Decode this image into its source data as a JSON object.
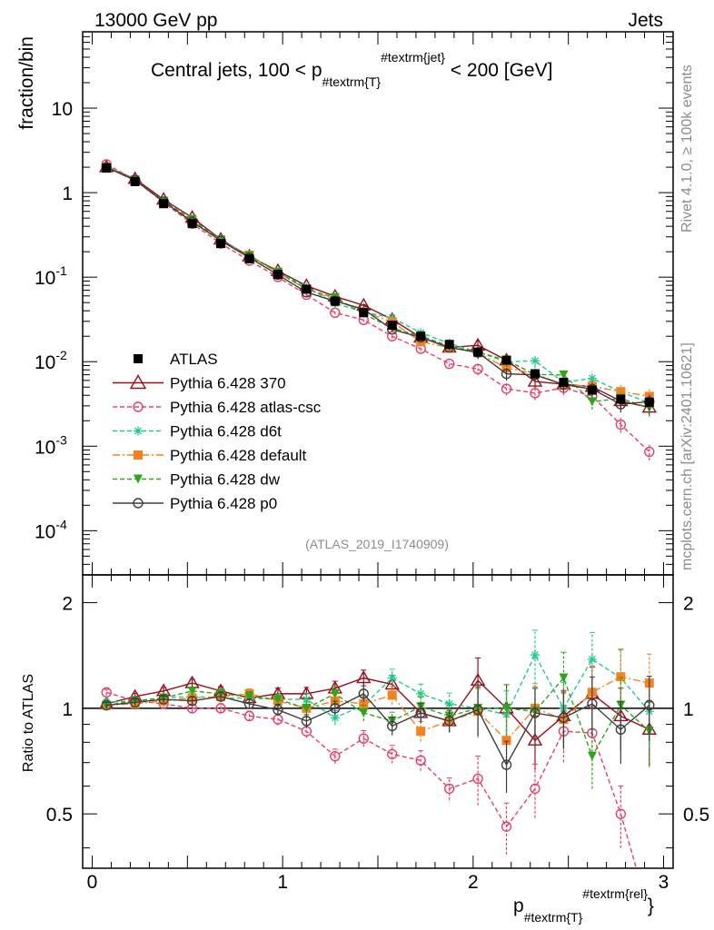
{
  "header": {
    "left": "13000 GeV pp",
    "right": "Jets",
    "side_rivet": "Rivet 4.1.0, ≥ 100k events",
    "side_mcplots": "mcplots.cern.ch [arXiv:2401.10621]",
    "analysis_id": "(ATLAS_2019_I1740909)"
  },
  "chart_data": {
    "type": "line",
    "title": "Central jets, 100 < p_#textrm{T}^#textrm{jet} < 200 [GeV]",
    "title_parts": {
      "pre": "Central jets, 100 < p",
      "sub": "#textrm{T}",
      "sup": "#textrm{jet}",
      "post": " < 200 [GeV]"
    },
    "ylabel": "fraction/bin",
    "ratio_ylabel": "Ratio to ATLAS",
    "xlabel_parts": {
      "base": "p",
      "sub": "#textrm{T}",
      "sup": "#textrm{rel}"
    },
    "x_ticklabels": [
      "0",
      "1",
      "2",
      "3"
    ],
    "y_ticklabels": [
      "10^-4",
      "10^-3",
      "10^-2",
      "10^-1",
      "1",
      "10"
    ],
    "ratio_ticklabels": [
      "0.5",
      "1",
      "2"
    ],
    "xlim": [
      -0.05,
      3.05
    ],
    "ylim": [
      3e-05,
      80
    ],
    "ratio_ylim": [
      0.35,
      2.4
    ],
    "x": [
      0.075,
      0.225,
      0.375,
      0.525,
      0.675,
      0.825,
      0.975,
      1.125,
      1.275,
      1.425,
      1.575,
      1.725,
      1.875,
      2.025,
      2.175,
      2.325,
      2.475,
      2.625,
      2.775,
      2.925
    ],
    "data": {
      "name": "ATLAS",
      "values": [
        1.95,
        1.35,
        0.74,
        0.43,
        0.25,
        0.165,
        0.108,
        0.072,
        0.052,
        0.038,
        0.027,
        0.02,
        0.016,
        0.013,
        0.0104,
        0.0072,
        0.0057,
        0.0046,
        0.0036,
        0.0033
      ]
    },
    "series": [
      {
        "name": "Pythia 6.428 370",
        "color": "#9b0c1c",
        "marker": "triangle-open",
        "dash": "solid",
        "ratio": [
          1.03,
          1.08,
          1.12,
          1.18,
          1.12,
          1.07,
          1.1,
          1.1,
          1.14,
          1.22,
          1.17,
          0.97,
          0.92,
          1.2,
          1.0,
          0.81,
          0.95,
          1.1,
          0.95,
          0.87
        ]
      },
      {
        "name": "Pythia 6.428 atlas-csc",
        "color": "#ee3d64",
        "marker": "circle-open",
        "dash": "dashed",
        "ratio": [
          1.11,
          1.05,
          1.03,
          1.0,
          1.0,
          0.95,
          0.93,
          0.86,
          0.73,
          0.82,
          0.74,
          0.71,
          0.59,
          0.63,
          0.46,
          0.59,
          0.86,
          0.85,
          0.5,
          0.26
        ]
      },
      {
        "name": "Pythia 6.428 d6t",
        "color": "#1fcc8a",
        "marker": "star",
        "dash": "dashed",
        "ratio": [
          1.04,
          1.05,
          1.07,
          1.08,
          1.07,
          1.07,
          1.06,
          1.06,
          0.94,
          1.02,
          1.22,
          1.1,
          1.03,
          1.0,
          0.96,
          1.42,
          1.0,
          1.38,
          1.22,
          0.98
        ]
      },
      {
        "name": "Pythia 6.428 default",
        "color": "#f58220",
        "marker": "square",
        "dash": "dashdot",
        "ratio": [
          1.02,
          1.03,
          1.05,
          1.07,
          1.08,
          1.1,
          1.05,
          1.0,
          1.05,
          1.03,
          1.09,
          0.86,
          0.92,
          0.98,
          0.81,
          1.0,
          0.93,
          1.11,
          1.23,
          1.18
        ]
      },
      {
        "name": "Pythia 6.428 dw",
        "color": "#2ea51a",
        "marker": "triangle-down",
        "dash": "dashed",
        "ratio": [
          1.02,
          1.05,
          1.07,
          1.12,
          1.1,
          1.08,
          1.06,
          1.0,
          1.1,
          0.97,
          0.92,
          1.01,
          0.95,
          1.0,
          1.0,
          0.98,
          1.22,
          0.73,
          1.02,
          0.86
        ]
      },
      {
        "name": "Pythia 6.428 p0",
        "color": "#3f3f3f",
        "marker": "circle-open",
        "dash": "solid",
        "ratio": [
          1.02,
          1.04,
          1.06,
          1.05,
          1.08,
          1.03,
          0.99,
          0.92,
          1.0,
          1.1,
          0.89,
          0.97,
          0.92,
          0.99,
          0.69,
          0.97,
          0.94,
          1.03,
          0.87,
          1.02
        ]
      }
    ]
  }
}
